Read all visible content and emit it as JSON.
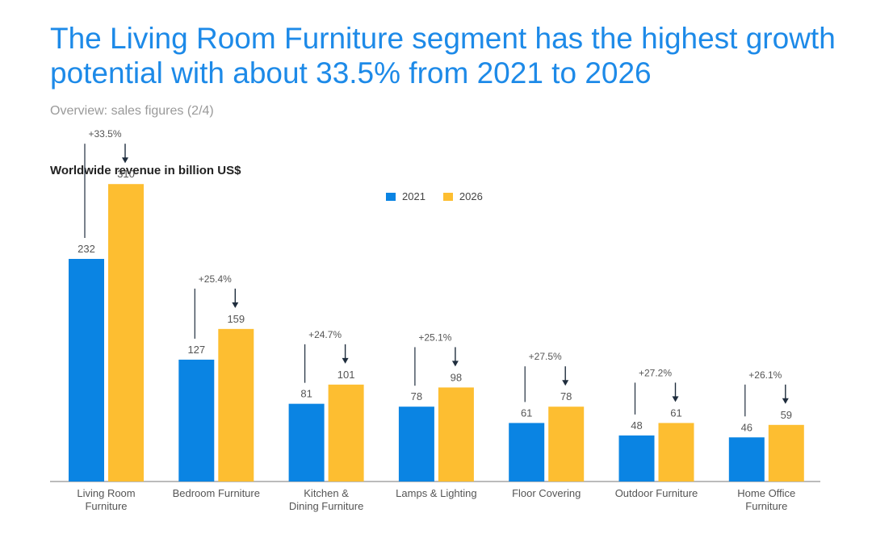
{
  "header": {
    "title": "The Living Room Furniture segment has the highest growth potential with about 33.5% from 2021 to 2026",
    "subtitle": "Overview: sales figures (2/4)"
  },
  "colors": {
    "series_2021": "#0a84e3",
    "series_2026": "#fdbe31",
    "title": "#1d8ae8",
    "axis": "#777777",
    "text": "#555555"
  },
  "chart_data": {
    "type": "bar",
    "title": "Worldwide revenue in billion US$",
    "xlabel": "",
    "ylabel": "",
    "ylim": [
      0,
      350
    ],
    "grid": false,
    "legend_position": "top-center",
    "categories": [
      [
        "Living Room",
        "Furniture"
      ],
      [
        "Bedroom Furniture"
      ],
      [
        "Kitchen &",
        "Dining Furniture"
      ],
      [
        "Lamps & Lighting"
      ],
      [
        "Floor Covering"
      ],
      [
        "Outdoor Furniture"
      ],
      [
        "Home Office",
        "Furniture"
      ]
    ],
    "series": [
      {
        "name": "2021",
        "values": [
          232,
          127,
          81,
          78,
          61,
          48,
          46
        ]
      },
      {
        "name": "2026",
        "values": [
          310,
          159,
          101,
          98,
          78,
          61,
          59
        ]
      }
    ],
    "growth_labels": [
      "+33.5%",
      "+25.4%",
      "+24.7%",
      "+25.1%",
      "+27.5%",
      "+27.2%",
      "+26.1%"
    ]
  }
}
